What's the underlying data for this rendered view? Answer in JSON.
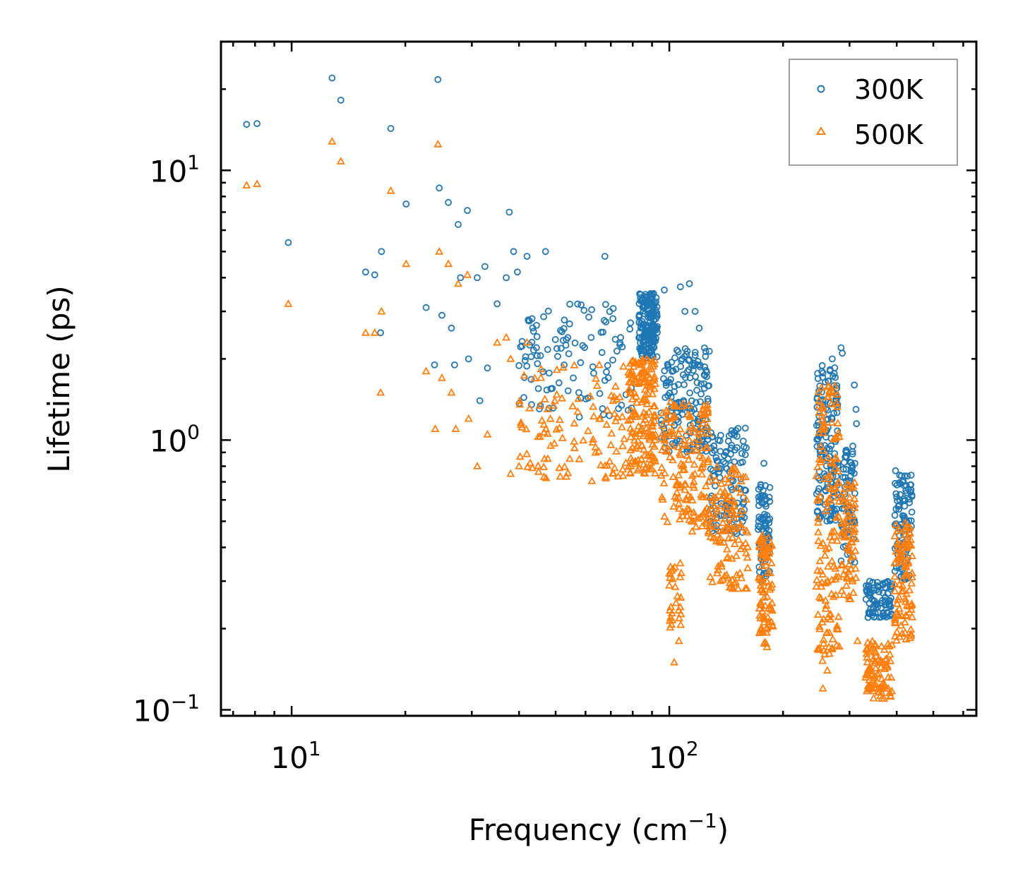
{
  "chart_data": {
    "type": "scatter",
    "title": "",
    "xlabel": "Frequency (cm",
    "xlabel_sup": "−1",
    "xlabel_suffix": ")",
    "ylabel": "Lifetime (ps)",
    "xscale": "log",
    "yscale": "log",
    "xlim": [
      6.5,
      650
    ],
    "ylim": [
      0.095,
      30
    ],
    "xticks": [
      {
        "value": 10,
        "base": "10",
        "exp": "1"
      },
      {
        "value": 100,
        "base": "10",
        "exp": "2"
      }
    ],
    "yticks": [
      {
        "value": 0.1,
        "base": "10",
        "exp": "−1"
      },
      {
        "value": 1,
        "base": "10",
        "exp": "0"
      },
      {
        "value": 10,
        "base": "10",
        "exp": "1"
      }
    ],
    "legend": {
      "position": "top-right"
    },
    "series": [
      {
        "name": "300K",
        "color": "#1f77b4",
        "marker": "circle",
        "clusters": [
          {
            "x": [
              83,
              93
            ],
            "y": [
              2.0,
              3.5
            ],
            "n": 180
          },
          {
            "x": [
              95,
              128
            ],
            "y": [
              0.9,
              2.2
            ],
            "n": 160
          },
          {
            "x": [
              128,
              160
            ],
            "y": [
              0.45,
              1.15
            ],
            "n": 120
          },
          {
            "x": [
              172,
              185
            ],
            "y": [
              0.3,
              0.7
            ],
            "n": 80
          },
          {
            "x": [
              245,
              280
            ],
            "y": [
              0.5,
              1.9
            ],
            "n": 150
          },
          {
            "x": [
              285,
              310
            ],
            "y": [
              0.35,
              1.0
            ],
            "n": 70
          },
          {
            "x": [
              330,
              390
            ],
            "y": [
              0.22,
              0.3
            ],
            "n": 90
          },
          {
            "x": [
              395,
              440
            ],
            "y": [
              0.3,
              0.78
            ],
            "n": 100
          },
          {
            "x": [
              40,
              80
            ],
            "y": [
              1.2,
              3.2
            ],
            "n": 110
          }
        ],
        "points": [
          [
            7.6,
            14.8
          ],
          [
            8.1,
            14.9
          ],
          [
            9.8,
            5.4
          ],
          [
            12.8,
            22.0
          ],
          [
            13.5,
            18.2
          ],
          [
            18.3,
            14.3
          ],
          [
            24.4,
            21.7
          ],
          [
            24.6,
            8.6
          ],
          [
            26.0,
            7.6
          ],
          [
            27.6,
            6.3
          ],
          [
            29.2,
            7.1
          ],
          [
            37.7,
            7.0
          ],
          [
            20.1,
            7.5
          ],
          [
            17.3,
            5.0
          ],
          [
            15.7,
            4.2
          ],
          [
            16.6,
            4.1
          ],
          [
            28.0,
            4.0
          ],
          [
            31.0,
            4.0
          ],
          [
            32.5,
            4.4
          ],
          [
            37.0,
            4.0
          ],
          [
            39.6,
            4.2
          ],
          [
            42.0,
            4.8
          ],
          [
            47.0,
            5.0
          ],
          [
            67.5,
            4.8
          ],
          [
            38.7,
            5.0
          ],
          [
            22.7,
            3.1
          ],
          [
            25.0,
            2.9
          ],
          [
            26.5,
            2.6
          ],
          [
            17.2,
            2.5
          ],
          [
            29.4,
            2.0
          ],
          [
            27.0,
            1.9
          ],
          [
            23.9,
            1.9
          ],
          [
            31.5,
            1.4
          ],
          [
            33.0,
            1.85
          ],
          [
            35.0,
            3.2
          ],
          [
            107.0,
            3.7
          ],
          [
            113.0,
            3.8
          ],
          [
            110.0,
            3.0
          ],
          [
            117.0,
            3.0
          ],
          [
            120.0,
            2.6
          ],
          [
            97.0,
            3.6
          ],
          [
            119.0,
            1.9
          ],
          [
            178.0,
            0.82
          ],
          [
            309.0,
            1.6
          ],
          [
            312.0,
            1.3
          ],
          [
            313.0,
            1.15
          ],
          [
            306.0,
            0.95
          ],
          [
            285.0,
            2.2
          ],
          [
            287.0,
            2.1
          ],
          [
            270.0,
            2.0
          ]
        ]
      },
      {
        "name": "500K",
        "color": "#ff7f0e",
        "marker": "triangle",
        "clusters": [
          {
            "x": [
              78,
              92
            ],
            "y": [
              0.75,
              2.0
            ],
            "n": 170
          },
          {
            "x": [
              95,
              128
            ],
            "y": [
              0.45,
              1.4
            ],
            "n": 160
          },
          {
            "x": [
              128,
              162
            ],
            "y": [
              0.28,
              0.8
            ],
            "n": 120
          },
          {
            "x": [
              100,
              108
            ],
            "y": [
              0.2,
              0.35
            ],
            "n": 30
          },
          {
            "x": [
              172,
              188
            ],
            "y": [
              0.17,
              0.45
            ],
            "n": 90
          },
          {
            "x": [
              245,
              282
            ],
            "y": [
              0.15,
              1.6
            ],
            "n": 150
          },
          {
            "x": [
              285,
              312
            ],
            "y": [
              0.25,
              0.7
            ],
            "n": 70
          },
          {
            "x": [
              330,
              390
            ],
            "y": [
              0.11,
              0.18
            ],
            "n": 90
          },
          {
            "x": [
              395,
              440
            ],
            "y": [
              0.18,
              0.5
            ],
            "n": 100
          },
          {
            "x": [
              40,
              78
            ],
            "y": [
              0.7,
              1.9
            ],
            "n": 110
          }
        ],
        "points": [
          [
            7.6,
            8.8
          ],
          [
            8.1,
            8.9
          ],
          [
            9.8,
            3.2
          ],
          [
            12.8,
            12.8
          ],
          [
            13.5,
            10.8
          ],
          [
            18.3,
            8.4
          ],
          [
            24.4,
            12.5
          ],
          [
            20.1,
            4.5
          ],
          [
            24.6,
            5.0
          ],
          [
            26.0,
            4.5
          ],
          [
            27.6,
            3.8
          ],
          [
            29.2,
            4.1
          ],
          [
            17.3,
            3.0
          ],
          [
            15.7,
            2.5
          ],
          [
            16.6,
            2.5
          ],
          [
            17.2,
            1.5
          ],
          [
            22.7,
            1.8
          ],
          [
            25.0,
            1.7
          ],
          [
            26.5,
            1.5
          ],
          [
            24.0,
            1.1
          ],
          [
            27.2,
            1.1
          ],
          [
            29.4,
            1.2
          ],
          [
            31.0,
            0.8
          ],
          [
            33.0,
            1.05
          ],
          [
            38.0,
            0.75
          ],
          [
            40.0,
            0.8
          ],
          [
            35.0,
            2.3
          ],
          [
            37.0,
            2.4
          ],
          [
            38.0,
            2.0
          ],
          [
            42.0,
            2.3
          ],
          [
            103.0,
            0.15
          ],
          [
            106.0,
            0.18
          ],
          [
            255.0,
            0.12
          ],
          [
            262.0,
            0.14
          ],
          [
            370.0,
            0.11
          ],
          [
            380.0,
            0.12
          ],
          [
            315.0,
            0.18
          ],
          [
            365.0,
            0.13
          ]
        ]
      }
    ]
  }
}
